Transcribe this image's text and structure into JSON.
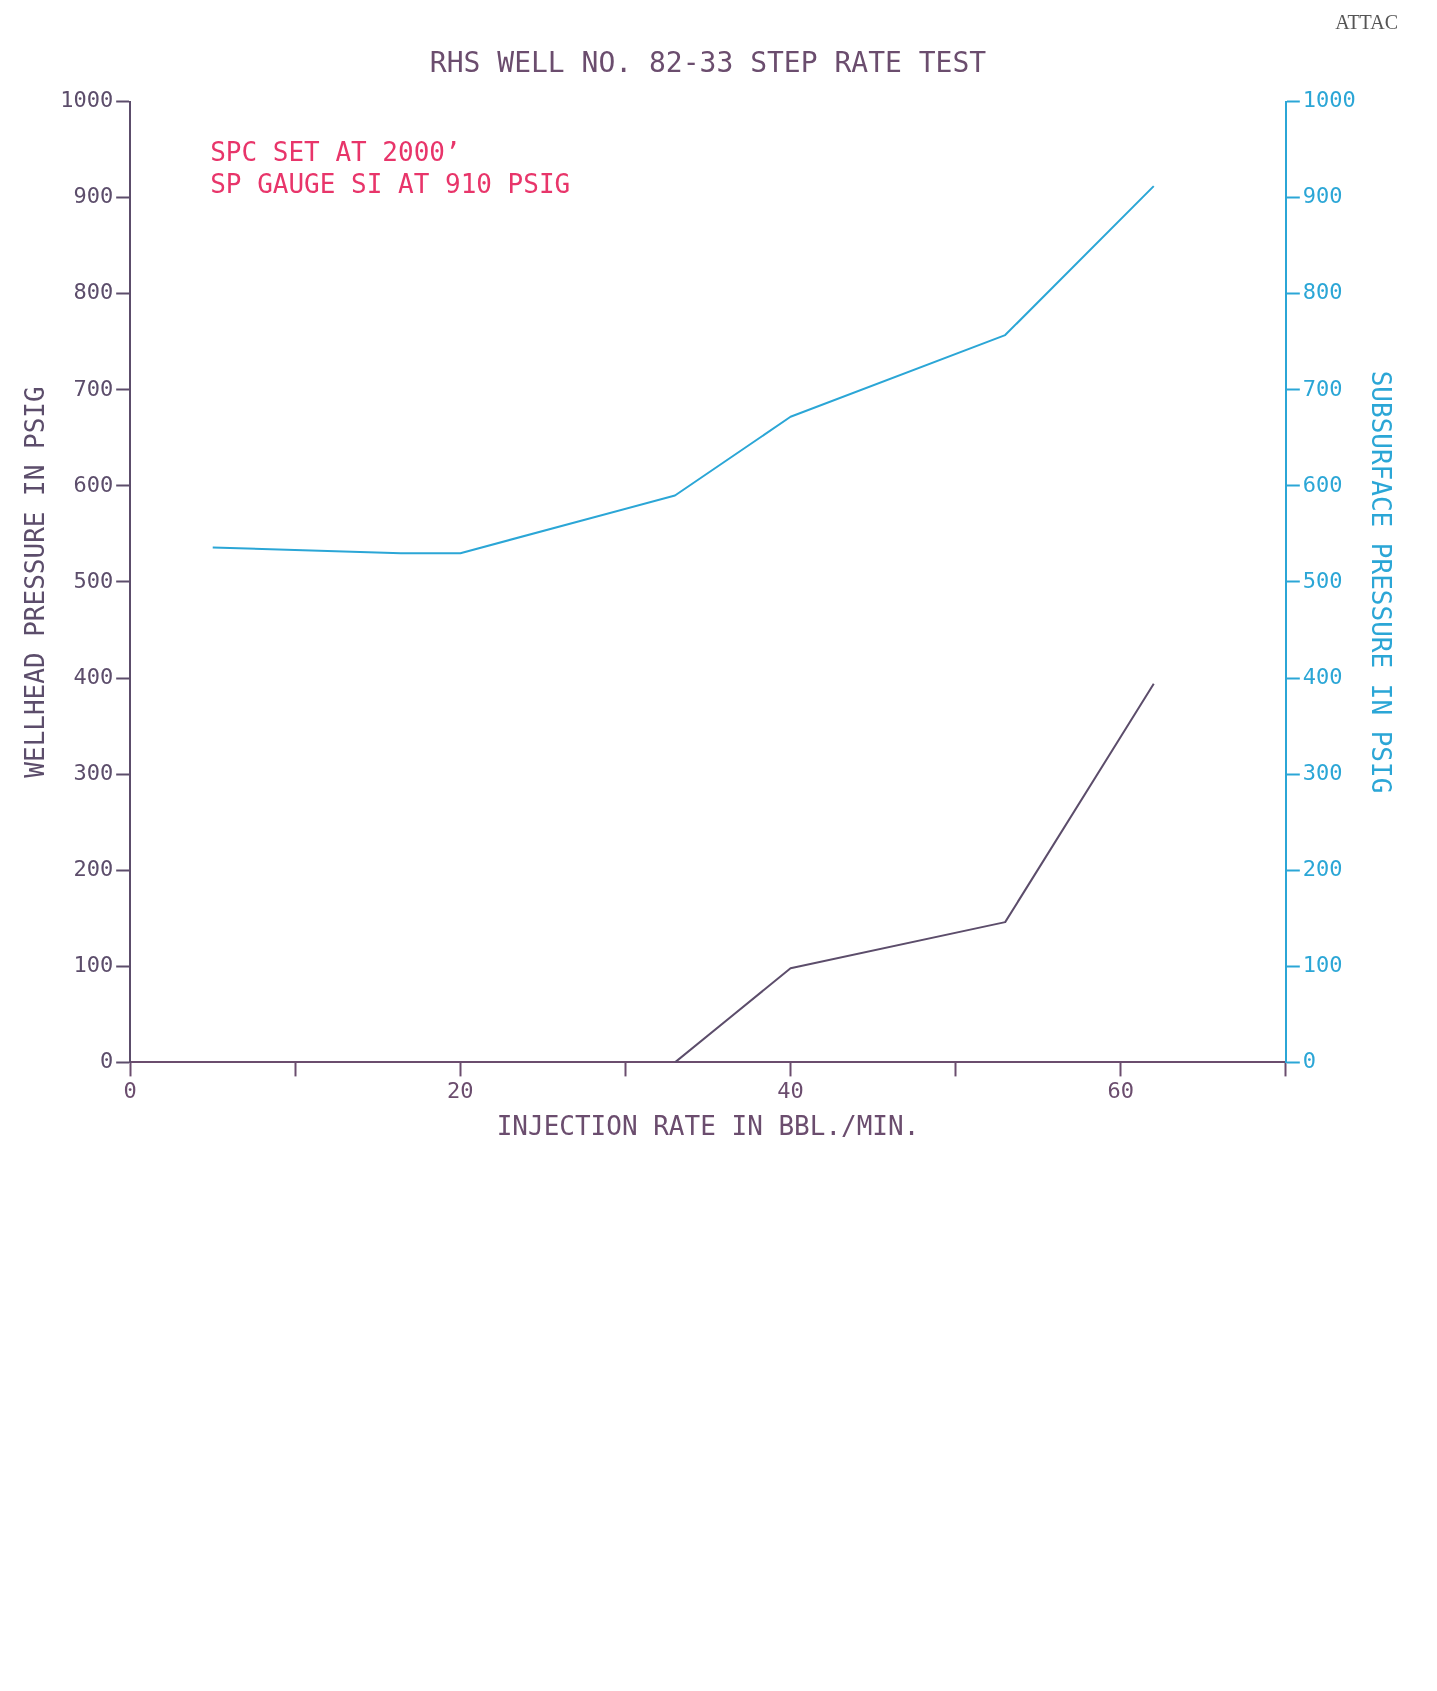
{
  "chart_data": {
    "type": "line",
    "title": "RHS WELL NO. 82-33 STEP RATE TEST",
    "xlabel": "INJECTION RATE IN BBL./MIN.",
    "ylabel": "WELLHEAD PRESSURE IN PSIG",
    "y2label": "SUBSURFACE PRESSURE IN PSIG",
    "annotations": [
      "SPC SET AT 2000’",
      "SP GAUGE SI AT 910 PSIG",
      "ATTAC"
    ],
    "series": [
      {
        "color": "#2ba6d6",
        "axis": "y2",
        "x": [
          5,
          16.4,
          20,
          33,
          40,
          53,
          62
        ],
        "values": [
          536,
          530,
          530,
          590,
          672,
          757,
          912
        ]
      },
      {
        "color": "#5c4d6b",
        "axis": "y",
        "x": [
          33,
          40,
          53,
          62
        ],
        "values": [
          0,
          98,
          146,
          394
        ]
      }
    ],
    "xlim": [
      0,
      70
    ],
    "xticks": [
      0,
      {
        "value": 10,
        "label": null
      },
      20,
      {
        "value": 30,
        "label": null
      },
      40,
      {
        "value": 50,
        "label": null
      },
      60,
      {
        "value": 70,
        "label": null
      }
    ],
    "ylim": [
      0,
      1000
    ],
    "yticks": [
      0,
      100,
      200,
      300,
      400,
      500,
      600,
      700,
      800,
      900,
      1000
    ],
    "y2lim": [
      0,
      1000
    ],
    "y2ticks": [
      0,
      100,
      200,
      300,
      400,
      500,
      600,
      700,
      800,
      900,
      1000
    ],
    "grid": false,
    "legend": false,
    "marker": "none",
    "line_style": "solid"
  }
}
